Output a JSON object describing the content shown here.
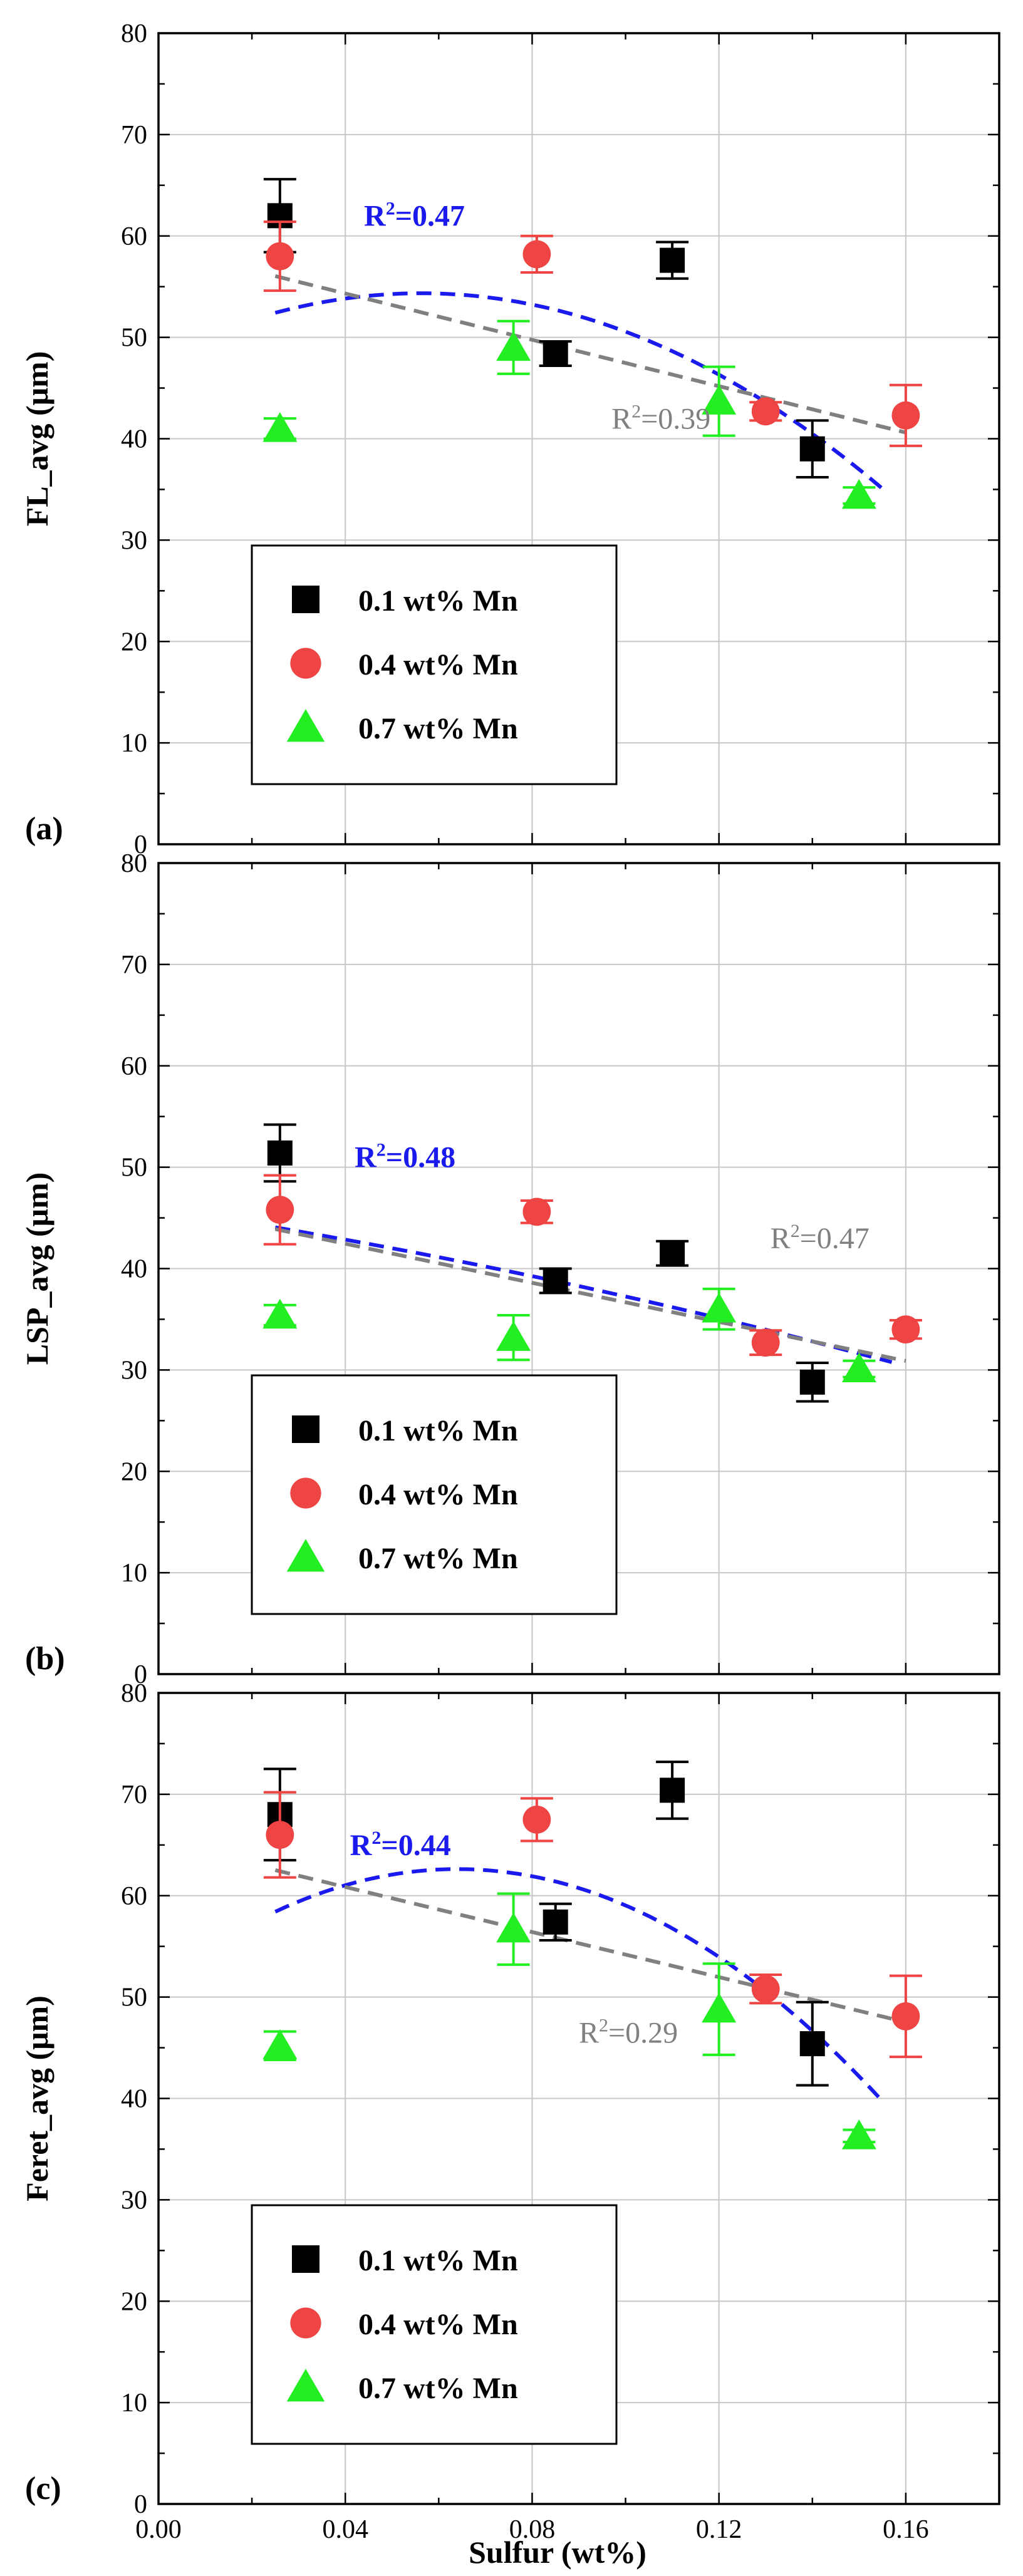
{
  "figure": {
    "x_axis_label": "Sulfur (wt%)",
    "x_ticks": [
      "0.00",
      "0.04",
      "0.08",
      "0.12",
      "0.16"
    ],
    "y_ticks": [
      "0",
      "10",
      "20",
      "30",
      "40",
      "50",
      "60",
      "70",
      "80"
    ]
  },
  "legend": {
    "entries": [
      "0.1 wt% Mn",
      "0.4 wt% Mn",
      "0.7 wt% Mn"
    ]
  },
  "colors": {
    "mn01": "#000000",
    "mn04": "#ee4444",
    "mn07": "#22ee22",
    "fit_quadratic": "#1a1aee",
    "fit_linear": "#808080",
    "grid": "#c8c8c8"
  },
  "chart_data": [
    {
      "type": "scatter",
      "panel_label": "(a)",
      "ylabel": "FL_avg (μm)",
      "xlabel": "",
      "xlim": [
        0.0,
        0.18
      ],
      "ylim": [
        0,
        80
      ],
      "grid": true,
      "legend_position": "bottom-left",
      "series": [
        {
          "name": "0.1 wt% Mn",
          "marker": "square",
          "x": [
            0.026,
            0.085,
            0.11,
            0.14
          ],
          "y": [
            62.0,
            48.4,
            57.6,
            39.0
          ],
          "err": [
            3.6,
            1.2,
            1.8,
            2.8
          ]
        },
        {
          "name": "0.4 wt% Mn",
          "marker": "circle",
          "x": [
            0.026,
            0.081,
            0.13,
            0.16
          ],
          "y": [
            58.0,
            58.2,
            42.7,
            42.3
          ],
          "err": [
            3.4,
            1.8,
            0.9,
            3.0
          ]
        },
        {
          "name": "0.7 wt% Mn",
          "marker": "triangle",
          "x": [
            0.026,
            0.076,
            0.12,
            0.15
          ],
          "y": [
            41.0,
            49.0,
            43.7,
            34.4
          ],
          "err": [
            1.0,
            2.6,
            3.4,
            0.8
          ]
        }
      ],
      "fits": [
        {
          "kind": "quadratic",
          "label": "R²=0.47",
          "x_range": [
            0.025,
            0.155
          ],
          "a": -1975.6,
          "b": 222.2,
          "c": 48.1
        },
        {
          "kind": "linear",
          "label": "R²=0.39",
          "x_range": [
            0.025,
            0.16
          ],
          "slope": -114.3,
          "intercept": 58.9
        }
      ],
      "annotations": [
        {
          "text": "R²=0.47",
          "x": 0.044,
          "y": 61.0,
          "color": "blue"
        },
        {
          "text": "R²=0.39",
          "x": 0.097,
          "y": 41.0,
          "color": "gray"
        }
      ]
    },
    {
      "type": "scatter",
      "panel_label": "(b)",
      "ylabel": "LSP_avg (μm)",
      "xlabel": "",
      "xlim": [
        0.0,
        0.18
      ],
      "ylim": [
        0,
        80
      ],
      "grid": true,
      "legend_position": "bottom-left",
      "series": [
        {
          "name": "0.1 wt% Mn",
          "marker": "square",
          "x": [
            0.026,
            0.085,
            0.11,
            0.14
          ],
          "y": [
            51.4,
            38.8,
            41.5,
            28.8
          ],
          "err": [
            2.8,
            1.2,
            1.2,
            1.9
          ]
        },
        {
          "name": "0.4 wt% Mn",
          "marker": "circle",
          "x": [
            0.026,
            0.081,
            0.13,
            0.16
          ],
          "y": [
            45.8,
            45.6,
            32.7,
            34.0
          ],
          "err": [
            3.4,
            1.1,
            1.2,
            0.9
          ]
        },
        {
          "name": "0.7 wt% Mn",
          "marker": "triangle",
          "x": [
            0.026,
            0.076,
            0.12,
            0.15
          ],
          "y": [
            35.4,
            33.2,
            36.0,
            30.1
          ],
          "err": [
            1.0,
            2.2,
            2.0,
            0.8
          ]
        }
      ],
      "fits": [
        {
          "kind": "quadratic",
          "label": "R²=0.48",
          "x_range": [
            0.025,
            0.157
          ],
          "a": -173.1,
          "b": -69.2,
          "c": 45.9
        },
        {
          "kind": "linear",
          "label": "R²=0.47",
          "x_range": [
            0.025,
            0.16
          ],
          "slope": -96.3,
          "intercept": 46.3
        }
      ],
      "annotations": [
        {
          "text": "R²=0.48",
          "x": 0.042,
          "y": 50.0,
          "color": "blue"
        },
        {
          "text": "R²=0.47",
          "x": 0.131,
          "y": 42.0,
          "color": "gray"
        }
      ]
    },
    {
      "type": "scatter",
      "panel_label": "(c)",
      "ylabel": "Feret_avg (μm)",
      "xlabel": "Sulfur (wt%)",
      "xlim": [
        0.0,
        0.18
      ],
      "ylim": [
        0,
        80
      ],
      "grid": true,
      "legend_position": "bottom-left",
      "series": [
        {
          "name": "0.1 wt% Mn",
          "marker": "square",
          "x": [
            0.026,
            0.085,
            0.11,
            0.14
          ],
          "y": [
            68.0,
            57.4,
            70.4,
            45.4
          ],
          "err": [
            4.5,
            1.8,
            2.8,
            4.1
          ]
        },
        {
          "name": "0.4 wt% Mn",
          "marker": "circle",
          "x": [
            0.026,
            0.081,
            0.13,
            0.16
          ],
          "y": [
            66.0,
            67.5,
            50.8,
            48.1
          ],
          "err": [
            4.2,
            2.1,
            1.4,
            4.0
          ]
        },
        {
          "name": "0.7 wt% Mn",
          "marker": "triangle",
          "x": [
            0.026,
            0.076,
            0.12,
            0.15
          ],
          "y": [
            45.2,
            56.7,
            48.8,
            36.3
          ],
          "err": [
            1.4,
            3.5,
            4.5,
            0.6
          ]
        }
      ],
      "fits": [
        {
          "kind": "quadratic",
          "label": "R²=0.44",
          "x_range": [
            0.025,
            0.155
          ],
          "a": -2764.0,
          "b": 353.8,
          "c": 51.3
        },
        {
          "kind": "linear",
          "label": "R²=0.29",
          "x_range": [
            0.025,
            0.16
          ],
          "slope": -111.1,
          "intercept": 65.3
        }
      ],
      "annotations": [
        {
          "text": "R²=0.44",
          "x": 0.041,
          "y": 64.0,
          "color": "blue"
        },
        {
          "text": "R²=0.29",
          "x": 0.09,
          "y": 45.5,
          "color": "gray"
        }
      ]
    }
  ]
}
